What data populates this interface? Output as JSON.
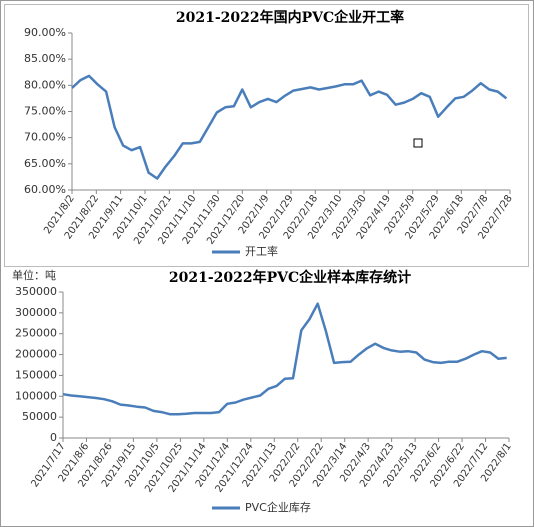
{
  "chart_data": [
    {
      "type": "line",
      "title": "2021-2022年国内PVC企业开工率",
      "x": [
        "2021/8/2",
        "2021/8/9",
        "2021/8/16",
        "2021/8/23",
        "2021/8/30",
        "2021/9/6",
        "2021/9/13",
        "2021/9/20",
        "2021/9/27",
        "2021/10/4",
        "2021/10/11",
        "2021/10/18",
        "2021/10/25",
        "2021/11/1",
        "2021/11/8",
        "2021/11/15",
        "2021/11/22",
        "2021/11/29",
        "2021/12/6",
        "2021/12/13",
        "2021/12/20",
        "2021/12/27",
        "2022/1/3",
        "2022/1/10",
        "2022/1/17",
        "2022/1/24",
        "2022/1/31",
        "2022/2/7",
        "2022/2/14",
        "2022/2/21",
        "2022/2/28",
        "2022/3/7",
        "2022/3/14",
        "2022/3/21",
        "2022/3/28",
        "2022/4/4",
        "2022/4/11",
        "2022/4/18",
        "2022/4/25",
        "2022/5/2",
        "2022/5/9",
        "2022/5/16",
        "2022/5/23",
        "2022/5/30",
        "2022/6/6",
        "2022/6/13",
        "2022/6/20",
        "2022/6/27",
        "2022/7/4",
        "2022/7/11",
        "2022/7/18",
        "2022/7/25"
      ],
      "series": [
        {
          "name": "开工率",
          "color": "#4a7ebb",
          "values": [
            79.5,
            81,
            81.8,
            80.2,
            78.8,
            72,
            68.5,
            67.6,
            68.2,
            63.3,
            62.2,
            64.5,
            66.5,
            68.9,
            68.9,
            69.2,
            72,
            74.8,
            75.8,
            76,
            79.2,
            75.8,
            76.8,
            77.4,
            76.8,
            78,
            79,
            79.3,
            79.6,
            79.2,
            79.5,
            79.8,
            80.2,
            80.2,
            80.9,
            78.1,
            78.8,
            78.2,
            76.3,
            76.7,
            77.4,
            78.5,
            77.8,
            74,
            75.8,
            77.5,
            77.8,
            79,
            80.4,
            79.2,
            78.8,
            77.5
          ]
        }
      ],
      "xlim": [
        "2021/8/2",
        "2022/7/28"
      ],
      "xticks": [
        "2021/8/2",
        "2021/8/22",
        "2021/9/11",
        "2021/10/1",
        "2021/10/21",
        "2021/11/10",
        "2021/11/30",
        "2021/12/20",
        "2022/1/9",
        "2022/1/29",
        "2022/2/18",
        "2022/3/10",
        "2022/3/30",
        "2022/4/19",
        "2022/5/9",
        "2022/5/29",
        "2022/6/18",
        "2022/7/8",
        "2022/7/28"
      ],
      "ylim": [
        60,
        90
      ],
      "yticks": [
        {
          "value": 60,
          "label": "60.00%"
        },
        {
          "value": 65,
          "label": "65.00%"
        },
        {
          "value": 70,
          "label": "70.00%"
        },
        {
          "value": 75,
          "label": "75.00%"
        },
        {
          "value": 80,
          "label": "80.00%"
        },
        {
          "value": 85,
          "label": "85.00%"
        },
        {
          "value": 90,
          "label": "90.00%"
        }
      ],
      "legend": "bottom"
    },
    {
      "type": "line",
      "title": "2021-2022年PVC企业样本库存统计",
      "unit_label": "单位：吨",
      "x": [
        "2021/7/17",
        "2021/7/24",
        "2021/7/31",
        "2021/8/7",
        "2021/8/14",
        "2021/8/21",
        "2021/8/28",
        "2021/9/4",
        "2021/9/11",
        "2021/9/18",
        "2021/9/25",
        "2021/10/2",
        "2021/10/9",
        "2021/10/16",
        "2021/10/23",
        "2021/10/30",
        "2021/11/6",
        "2021/11/13",
        "2021/11/20",
        "2021/11/27",
        "2021/12/4",
        "2021/12/11",
        "2021/12/18",
        "2021/12/25",
        "2022/1/1",
        "2022/1/8",
        "2022/1/15",
        "2022/1/22",
        "2022/1/29",
        "2022/2/5",
        "2022/2/12",
        "2022/2/19",
        "2022/2/26",
        "2022/3/5",
        "2022/3/12",
        "2022/3/19",
        "2022/3/26",
        "2022/4/2",
        "2022/4/9",
        "2022/4/16",
        "2022/4/23",
        "2022/4/30",
        "2022/5/7",
        "2022/5/14",
        "2022/5/21",
        "2022/5/28",
        "2022/6/4",
        "2022/6/11",
        "2022/6/18",
        "2022/6/25",
        "2022/7/2",
        "2022/7/9",
        "2022/7/16",
        "2022/7/23",
        "2022/7/30"
      ],
      "series": [
        {
          "name": "PVC企业库存",
          "color": "#4a7ebb",
          "values": [
            105000,
            102000,
            100000,
            98000,
            96000,
            93000,
            88000,
            80000,
            78000,
            75000,
            73000,
            65000,
            62000,
            57000,
            57000,
            58000,
            60000,
            60000,
            60000,
            62000,
            82000,
            85000,
            92000,
            97000,
            102000,
            118000,
            125000,
            142000,
            143000,
            258000,
            285000,
            322000,
            256000,
            180000,
            182000,
            183000,
            200000,
            215000,
            226000,
            216000,
            210000,
            207000,
            208000,
            205000,
            188000,
            182000,
            180000,
            183000,
            183000,
            190000,
            200000,
            208000,
            205000,
            190000,
            192000
          ]
        }
      ],
      "xlim": [
        "2021/7/17",
        "2022/8/1"
      ],
      "xticks": [
        "2021/7/17",
        "2021/8/6",
        "2021/8/26",
        "2021/9/15",
        "2021/10/5",
        "2021/10/25",
        "2021/11/14",
        "2021/12/4",
        "2021/12/24",
        "2022/1/13",
        "2022/2/2",
        "2022/2/22",
        "2022/3/14",
        "2022/4/3",
        "2022/4/23",
        "2022/5/13",
        "2022/6/2",
        "2022/6/22",
        "2022/7/12",
        "2022/8/1"
      ],
      "ylim": [
        0,
        350000
      ],
      "yticks": [
        0,
        50000,
        100000,
        150000,
        200000,
        250000,
        300000,
        350000
      ],
      "legend": "bottom"
    }
  ]
}
